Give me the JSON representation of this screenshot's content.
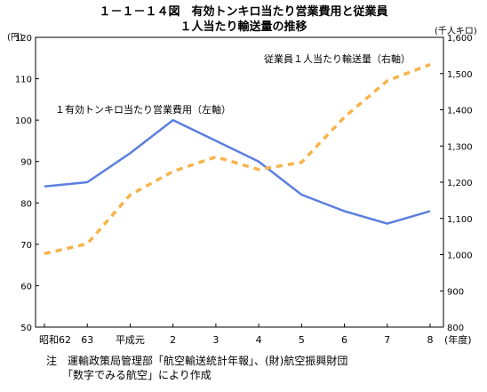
{
  "chart_data": {
    "type": "line",
    "title_line1": "１－１－１４図　有効トンキロ当たり営業費用と従業員",
    "title_line2": "１人当たり輸送量の推移",
    "left_unit": "(円)",
    "right_unit": "(千人キロ)",
    "x_unit": "(年度)",
    "categories": [
      "昭和62",
      "63",
      "平成元",
      "2",
      "3",
      "4",
      "5",
      "6",
      "7",
      "8"
    ],
    "ylim_left": [
      50,
      120
    ],
    "yticks_left": [
      "50",
      "60",
      "70",
      "80",
      "90",
      "100",
      "110",
      "120"
    ],
    "ylim_right": [
      800,
      1600
    ],
    "yticks_right": [
      "800",
      "900",
      "1,000",
      "1,100",
      "1,200",
      "1,300",
      "1,400",
      "1,500",
      "1,600"
    ],
    "series": [
      {
        "name": "１有効トンキロ当たり営業費用（左軸）",
        "axis": "left",
        "style": "solid",
        "color": "#5b7fde",
        "values": [
          84,
          85,
          92,
          100,
          95,
          90,
          82,
          78,
          75,
          78
        ]
      },
      {
        "name": "従業員１人当たり輸送量（右軸）",
        "axis": "right",
        "style": "dashed",
        "color": "#f7b34a",
        "values": [
          1003,
          1030,
          1165,
          1230,
          1270,
          1235,
          1255,
          1380,
          1480,
          1525
        ]
      }
    ]
  },
  "notes": {
    "line1": "注　運輸政策局管理部「航空輸送統計年報」、(財)航空振興財団",
    "line2": "　　「数字でみる航空」により作成"
  }
}
